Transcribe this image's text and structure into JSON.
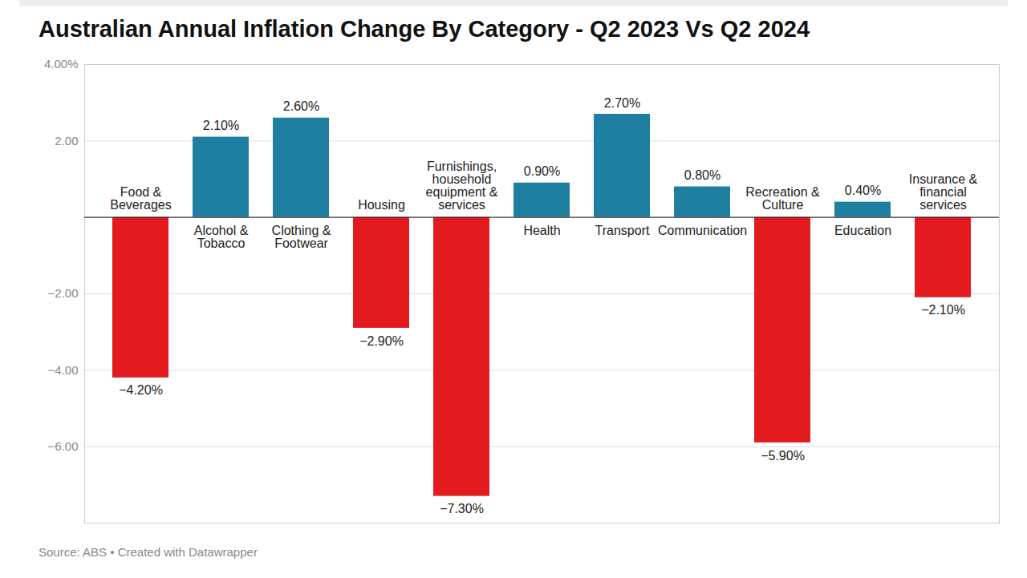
{
  "chart_data": {
    "type": "bar",
    "title": "Australian Annual Inflation Change By Category - Q2 2023 Vs Q2 2024",
    "caption": "Source: ABS • Created with Datawrapper",
    "categories": [
      "Food & Beverages",
      "Alcohol & Tobacco",
      "Clothing & Footwear",
      "Housing",
      "Furnishings, household equipment & services",
      "Health",
      "Transport",
      "Communication",
      "Recreation & Culture",
      "Education",
      "Insurance & financial services"
    ],
    "values": [
      -4.2,
      2.1,
      2.6,
      -2.9,
      -7.3,
      0.9,
      2.7,
      0.8,
      -5.9,
      0.4,
      -2.1
    ],
    "value_labels": [
      "−4.20%",
      "2.10%",
      "2.60%",
      "−2.90%",
      "−7.30%",
      "0.90%",
      "2.70%",
      "0.80%",
      "−5.90%",
      "0.40%",
      "−2.10%"
    ],
    "colors": [
      "#e31b1e",
      "#1f7fa0",
      "#1f7fa0",
      "#e31b1e",
      "#e31b1e",
      "#1f7fa0",
      "#1f7fa0",
      "#1f7fa0",
      "#e31b1e",
      "#1f7fa0",
      "#e31b1e"
    ],
    "ylim": [
      -8,
      4
    ],
    "yticks": [
      {
        "value": 4,
        "label": "4.00%"
      },
      {
        "value": 2,
        "label": "2.00"
      },
      {
        "value": -2,
        "label": "−2.00"
      },
      {
        "value": -4,
        "label": "−4.00"
      },
      {
        "value": -6,
        "label": "−6.00"
      }
    ],
    "grid": true,
    "data_labels": true
  }
}
